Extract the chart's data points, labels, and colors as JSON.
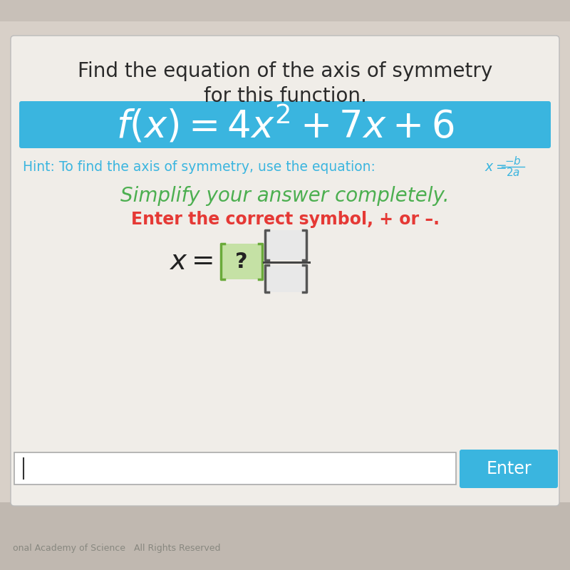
{
  "title_line1": "Find the equation of the axis of symmetry",
  "title_line2": "for this function.",
  "title_fontsize": 20,
  "title_color": "#2a2a2a",
  "function_text": "$f(x) = 4x^2 + 7x + 6$",
  "function_bg_color": "#3ab5df",
  "function_fontsize": 38,
  "function_text_color": "#ffffff",
  "hint_text": "Hint: To find the axis of symmetry, use the equation: ",
  "hint_color": "#3ab5df",
  "hint_fontsize": 13.5,
  "simplify_text": "Simplify your answer completely.",
  "simplify_color": "#4caf50",
  "simplify_fontsize": 20,
  "enter_symbol_text": "Enter the correct symbol, + or –.",
  "enter_symbol_color": "#e53935",
  "enter_symbol_fontsize": 17,
  "answer_fontsize": 26,
  "answer_text_color": "#222222",
  "box_question_color": "#c5e1a5",
  "box_question_border": "#6aaa3a",
  "box_blank_color": "#e8e8e8",
  "box_blank_border": "#555555",
  "frac_line_color": "#444444",
  "input_bar_color": "#ffffff",
  "input_border_color": "#aaaaaa",
  "enter_btn_color": "#3ab5df",
  "enter_btn_text": "Enter",
  "enter_btn_text_color": "#ffffff",
  "bg_top_color": "#c8c0b8",
  "bg_main_color": "#d8d0c8",
  "card_color": "#f0ede8",
  "footer_color": "#c0b8b0",
  "footer_text": "onal Academy of Science   All Rights Reserved",
  "footer_text_color": "#888880"
}
